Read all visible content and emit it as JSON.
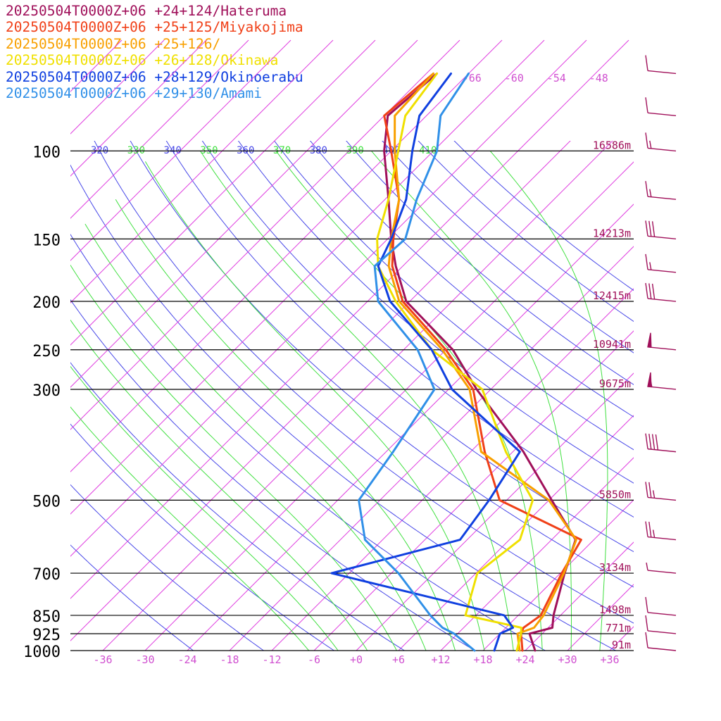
{
  "chart_data": {
    "type": "line",
    "chart_kind": "skew-T log-P sounding",
    "y_axis": {
      "scale": "log",
      "inverted": true,
      "unit": "hPa",
      "range": [
        1000,
        70
      ]
    },
    "x_axis": {
      "unit": "°C",
      "skewed": true,
      "range": [
        -40,
        40
      ]
    },
    "legend_position": "top-left",
    "series": [
      {
        "name": "20250504T0000Z+06 +24+124/Hateruma",
        "color": "#a0105a",
        "points": [
          [
            1000,
            25.4
          ],
          [
            925,
            22.2
          ],
          [
            900,
            24.6
          ],
          [
            850,
            23
          ],
          [
            700,
            18.6
          ],
          [
            600,
            15.4
          ],
          [
            500,
            6.4
          ],
          [
            400,
            -4.5
          ],
          [
            300,
            -20
          ],
          [
            250,
            -29
          ],
          [
            200,
            -42.5
          ],
          [
            170,
            -49
          ],
          [
            150,
            -53.5
          ],
          [
            125,
            -59.5
          ],
          [
            100,
            -67
          ],
          [
            85,
            -71.5
          ],
          [
            70,
            -70.5
          ]
        ]
      },
      {
        "name": "20250504T0000Z+06 +25+125/Miyakojima",
        "color": "#f04018",
        "points": [
          [
            1000,
            23.6
          ],
          [
            925,
            21
          ],
          [
            900,
            20.5
          ],
          [
            850,
            21.2
          ],
          [
            700,
            18.2
          ],
          [
            600,
            16.2
          ],
          [
            500,
            -1
          ],
          [
            400,
            -10
          ],
          [
            300,
            -20.5
          ],
          [
            250,
            -30
          ],
          [
            200,
            -43
          ],
          [
            170,
            -49.5
          ],
          [
            150,
            -53.2
          ],
          [
            125,
            -58
          ],
          [
            100,
            -66
          ],
          [
            85,
            -72
          ],
          [
            70,
            -71
          ]
        ]
      },
      {
        "name": "20250504T0000Z+06 +25+126/",
        "color": "#f8a000",
        "points": [
          [
            1000,
            23.2
          ],
          [
            925,
            20.5
          ],
          [
            900,
            22
          ],
          [
            850,
            21.6
          ],
          [
            700,
            18.5
          ],
          [
            600,
            15.5
          ],
          [
            500,
            6
          ],
          [
            400,
            -10.5
          ],
          [
            300,
            -21
          ],
          [
            250,
            -30.5
          ],
          [
            200,
            -43.5
          ],
          [
            170,
            -50
          ],
          [
            150,
            -53.5
          ],
          [
            125,
            -58
          ],
          [
            100,
            -65.5
          ],
          [
            85,
            -70.5
          ],
          [
            70,
            -71
          ]
        ]
      },
      {
        "name": "20250504T0000Z+06 +26+128/Okinawa",
        "color": "#f0e000",
        "points": [
          [
            1000,
            22.8
          ],
          [
            925,
            21
          ],
          [
            900,
            20.2
          ],
          [
            850,
            10.5
          ],
          [
            700,
            6.2
          ],
          [
            600,
            7.5
          ],
          [
            500,
            3.7
          ],
          [
            400,
            -7
          ],
          [
            300,
            -19.2
          ],
          [
            250,
            -32
          ],
          [
            200,
            -44
          ],
          [
            170,
            -51.5
          ],
          [
            150,
            -55.5
          ],
          [
            125,
            -59.5
          ],
          [
            100,
            -65
          ],
          [
            85,
            -69
          ],
          [
            70,
            -70.5
          ]
        ]
      },
      {
        "name": "20250504T0000Z+06 +28+129/Okinoerabu",
        "color": "#1040e0",
        "points": [
          [
            1000,
            19.6
          ],
          [
            925,
            18
          ],
          [
            900,
            19
          ],
          [
            850,
            16
          ],
          [
            700,
            -14.5
          ],
          [
            600,
            -1
          ],
          [
            500,
            -2.5
          ],
          [
            400,
            -5
          ],
          [
            300,
            -23.5
          ],
          [
            250,
            -32
          ],
          [
            200,
            -44.8
          ],
          [
            170,
            -51.5
          ],
          [
            150,
            -53.5
          ],
          [
            125,
            -57
          ],
          [
            100,
            -63
          ],
          [
            85,
            -67
          ],
          [
            70,
            -68.5
          ]
        ]
      },
      {
        "name": "20250504T0000Z+06 +29+130/Amami",
        "color": "#3090e8",
        "points": [
          [
            1000,
            16.8
          ],
          [
            925,
            11.5
          ],
          [
            900,
            9
          ],
          [
            850,
            5.5
          ],
          [
            700,
            -5
          ],
          [
            600,
            -14.5
          ],
          [
            500,
            -21
          ],
          [
            400,
            -23
          ],
          [
            300,
            -26
          ],
          [
            250,
            -34
          ],
          [
            200,
            -46.5
          ],
          [
            170,
            -52
          ],
          [
            150,
            -51.5
          ],
          [
            125,
            -55.5
          ],
          [
            100,
            -59.5
          ],
          [
            85,
            -64
          ],
          [
            70,
            -66
          ]
        ]
      }
    ],
    "pressure_levels": [
      {
        "p": 100,
        "label": "100",
        "height": "16586m"
      },
      {
        "p": 150,
        "label": "150",
        "height": "14213m"
      },
      {
        "p": 200,
        "label": "200",
        "height": "12415m"
      },
      {
        "p": 250,
        "label": "250",
        "height": "10941m"
      },
      {
        "p": 300,
        "label": "300",
        "height": "9675m"
      },
      {
        "p": 500,
        "label": "500",
        "height": "5850m"
      },
      {
        "p": 700,
        "label": "700",
        "height": "3134m"
      },
      {
        "p": 850,
        "label": "850",
        "height": "1498m"
      },
      {
        "p": 925,
        "label": "925",
        "height": "771m"
      },
      {
        "p": 1000,
        "label": "1000",
        "height": "91m"
      }
    ],
    "temperature_ticks": [
      "-36",
      "-30",
      "-24",
      "-18",
      "-12",
      "-6",
      "+0",
      "+6",
      "+12",
      "+18",
      "+24",
      "+30",
      "+36"
    ],
    "upper_isotherm_labels": [
      "-66",
      "-60",
      "-54",
      "-48"
    ],
    "theta_labels": [
      "310",
      "320",
      "330",
      "340",
      "350",
      "360",
      "370",
      "380",
      "390",
      "400",
      "410"
    ],
    "wind_barbs": [
      {
        "p": 70,
        "speed_kt": 10
      },
      {
        "p": 85,
        "speed_kt": 10
      },
      {
        "p": 100,
        "speed_kt": 15
      },
      {
        "p": 125,
        "speed_kt": 15
      },
      {
        "p": 150,
        "speed_kt": 30
      },
      {
        "p": 175,
        "speed_kt": 15
      },
      {
        "p": 200,
        "speed_kt": 30
      },
      {
        "p": 250,
        "speed_kt": 50
      },
      {
        "p": 300,
        "speed_kt": 55
      },
      {
        "p": 400,
        "speed_kt": 40
      },
      {
        "p": 500,
        "speed_kt": 25
      },
      {
        "p": 600,
        "speed_kt": 25
      },
      {
        "p": 700,
        "speed_kt": 5
      },
      {
        "p": 850,
        "speed_kt": 10
      },
      {
        "p": 925,
        "speed_kt": 10
      },
      {
        "p": 1000,
        "speed_kt": 10
      }
    ],
    "colors": {
      "isobar": "#000000",
      "isotherm": "#e040e0",
      "dry_adiabat": "#4848e8",
      "moist_adiabat": "#40e040",
      "tick_label": "#d050d0",
      "barb": "#a0105a"
    }
  }
}
